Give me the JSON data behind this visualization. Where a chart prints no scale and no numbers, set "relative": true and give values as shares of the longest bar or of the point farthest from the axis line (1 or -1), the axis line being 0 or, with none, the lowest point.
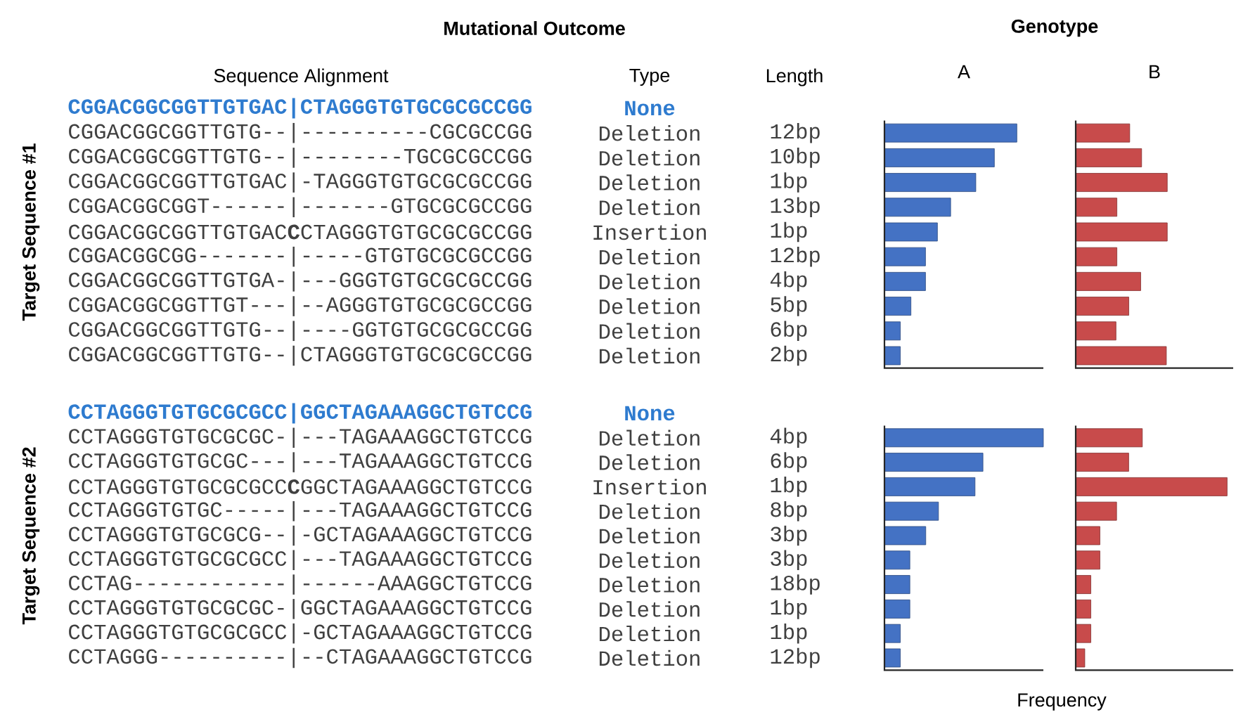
{
  "chart_data": [
    {
      "type": "bar",
      "orientation": "horizontal",
      "relative": true,
      "tick_labels": "y",
      "title": "A",
      "ylabel": "Target Sequence #1",
      "color": "#4472c4",
      "categories": [
        "CGGACGGCGGTTGTGAC|CTAGGGTGTGCGCGCCGG",
        "CGGACGGCGGTTGTG--|----------CGCGCCGG",
        "CGGACGGCGGTTGTG--|--------TGCGCGCCGG",
        "CGGACGGCGGTTGTGAC|-TAGGGTGTGCGCGCCGG",
        "CGGACGGCGGT------|-------GTGCGCGCCGG",
        "CGGACGGCGGTTGTGAC**C**CTAGGGTGTGCGCGCCGG",
        "CGGACGGCGG-------|-----GTGTGCGCGCCGG",
        "CGGACGGCGGTTGTGA-|---GGGTGTGCGCGCCGG",
        "CGGACGGCGGTTGT---|--AGGGTGTGCGCGCCGG",
        "CGGACGGCGGTTGTG--|----GGTGTGCGCGCCGG",
        "CGGACGGCGGTTGTG--|CTAGGGTGTGCGCGCCGG"
      ],
      "values": [
        null,
        1,
        0.83,
        0.69,
        0.5,
        0.4,
        0.31,
        0.31,
        0.2,
        0.12,
        0.12
      ],
      "annotations": [
        "Mutational Outcome",
        "Genotype",
        "Sequence Alignment",
        "Type",
        "Length",
        "None",
        "Deletion",
        "Deletion",
        "Deletion",
        "Deletion",
        "Insertion",
        "Deletion",
        "Deletion",
        "Deletion",
        "Deletion",
        "Deletion",
        "12bp",
        "10bp",
        "1bp",
        "13bp",
        "1bp",
        "12bp",
        "4bp",
        "5bp",
        "6bp",
        "2bp"
      ]
    },
    {
      "type": "bar",
      "orientation": "horizontal",
      "relative": true,
      "tick_labels": false,
      "title": "B",
      "color": "#c84b4b",
      "categories": [
        null,
        null,
        null,
        null,
        null,
        null,
        null,
        null,
        null,
        null
      ],
      "values": [
        0.59,
        0.72,
        1,
        0.45,
        1,
        0.45,
        0.71,
        0.58,
        0.44,
        0.99
      ]
    },
    {
      "type": "bar",
      "orientation": "horizontal",
      "relative": true,
      "tick_labels": "y",
      "ylabel": "Target Sequence #2",
      "xlabel": "Frequency",
      "color": "#4472c4",
      "categories": [
        "CCTAGGGTGTGCGCGCC|GGCTAGAAAGGCTGTCCG",
        "CCTAGGGTGTGCGCGC-|---TAGAAAGGCTGTCCG",
        "CCTAGGGTGTGCGC---|---TAGAAAGGCTGTCCG",
        "CCTAGGGTGTGCGCGCC**C**GGCTAGAAAGGCTGTCCG",
        "CCTAGGGTGTGC-----|---TAGAAAGGCTGTCCG",
        "CCTAGGGTGTGCGCG--|-GCTAGAAAGGCTGTCCG",
        "CCTAGGGTGTGCGCGCC|---TAGAAAGGCTGTCCG",
        "CCTAG------------|------AAAGGCTGTCCG",
        "CCTAGGGTGTGCGCGC-|GGCTAGAAAGGCTGTCCG",
        "CCTAGGGTGTGCGCGCC|-GCTAGAAAGGCTGTCCG",
        "CCTAGGG----------|--CTAGAAAGGCTGTCCG"
      ],
      "values": [
        null,
        1,
        0.62,
        0.57,
        0.34,
        0.26,
        0.16,
        0.16,
        0.16,
        0.1,
        0.1
      ],
      "annotations": [
        "None",
        "Deletion",
        "Deletion",
        "Insertion",
        "Deletion",
        "Deletion",
        "Deletion",
        "Deletion",
        "Deletion",
        "Deletion",
        "Deletion",
        "4bp",
        "6bp",
        "1bp",
        "8bp",
        "3bp",
        "3bp",
        "18bp",
        "1bp",
        "1bp",
        "12bp"
      ]
    },
    {
      "type": "bar",
      "orientation": "horizontal",
      "relative": true,
      "tick_labels": false,
      "color": "#c84b4b",
      "categories": [
        null,
        null,
        null,
        null,
        null,
        null,
        null,
        null,
        null,
        null
      ],
      "values": [
        0.44,
        0.35,
        1,
        0.27,
        0.16,
        0.16,
        0.1,
        0.1,
        0.1,
        0.06
      ]
    }
  ]
}
